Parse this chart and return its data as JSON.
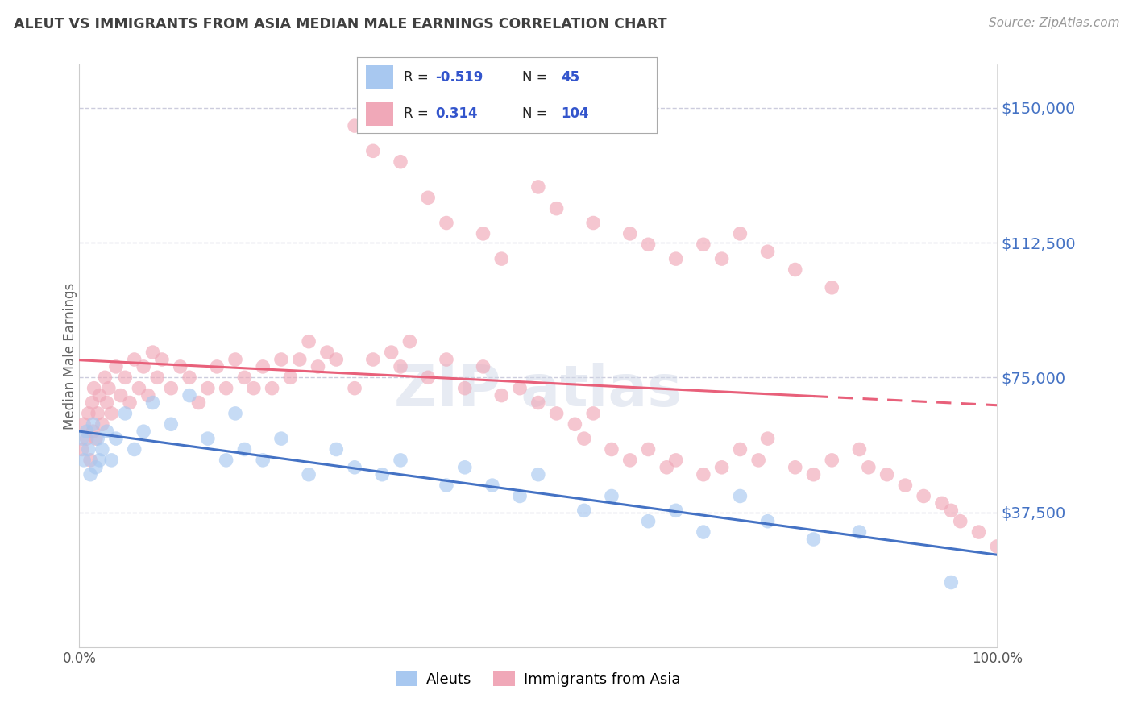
{
  "title": "ALEUT VS IMMIGRANTS FROM ASIA MEDIAN MALE EARNINGS CORRELATION CHART",
  "source": "Source: ZipAtlas.com",
  "ylabel": "Median Male Earnings",
  "ylim": [
    0,
    162000
  ],
  "ytick_vals": [
    37500,
    75000,
    112500,
    150000
  ],
  "ytick_labels": [
    "$37,500",
    "$75,000",
    "$112,500",
    "$150,000"
  ],
  "xtick_labels": [
    "0.0%",
    "100.0%"
  ],
  "color_aleut": "#a8c8f0",
  "color_asia": "#f0a8b8",
  "color_aleut_line": "#4472c4",
  "color_asia_line": "#e8607a",
  "color_ytick": "#4472c4",
  "color_title": "#404040",
  "color_source": "#999999",
  "color_grid": "#ccccdd",
  "aleut_x": [
    0.3,
    0.5,
    0.8,
    1.0,
    1.2,
    1.5,
    1.8,
    2.0,
    2.2,
    2.5,
    3.0,
    3.5,
    4.0,
    5.0,
    6.0,
    7.0,
    8.0,
    10.0,
    12.0,
    14.0,
    16.0,
    17.0,
    18.0,
    20.0,
    22.0,
    25.0,
    28.0,
    30.0,
    33.0,
    35.0,
    40.0,
    42.0,
    45.0,
    48.0,
    50.0,
    55.0,
    58.0,
    62.0,
    65.0,
    68.0,
    72.0,
    75.0,
    80.0,
    85.0,
    95.0
  ],
  "aleut_y": [
    58000,
    52000,
    60000,
    55000,
    48000,
    62000,
    50000,
    58000,
    52000,
    55000,
    60000,
    52000,
    58000,
    65000,
    55000,
    60000,
    68000,
    62000,
    70000,
    58000,
    52000,
    65000,
    55000,
    52000,
    58000,
    48000,
    55000,
    50000,
    48000,
    52000,
    45000,
    50000,
    45000,
    42000,
    48000,
    38000,
    42000,
    35000,
    38000,
    32000,
    42000,
    35000,
    30000,
    32000,
    18000
  ],
  "asia_x": [
    0.3,
    0.5,
    0.8,
    1.0,
    1.2,
    1.4,
    1.5,
    1.6,
    1.8,
    2.0,
    2.2,
    2.5,
    2.8,
    3.0,
    3.2,
    3.5,
    4.0,
    4.5,
    5.0,
    5.5,
    6.0,
    6.5,
    7.0,
    7.5,
    8.0,
    8.5,
    9.0,
    10.0,
    11.0,
    12.0,
    13.0,
    14.0,
    15.0,
    16.0,
    17.0,
    18.0,
    19.0,
    20.0,
    21.0,
    22.0,
    23.0,
    24.0,
    25.0,
    26.0,
    27.0,
    28.0,
    30.0,
    32.0,
    34.0,
    35.0,
    36.0,
    38.0,
    40.0,
    42.0,
    44.0,
    46.0,
    48.0,
    50.0,
    52.0,
    54.0,
    55.0,
    56.0,
    58.0,
    60.0,
    62.0,
    64.0,
    65.0,
    68.0,
    70.0,
    72.0,
    74.0,
    75.0,
    78.0,
    80.0,
    82.0,
    85.0,
    86.0,
    88.0,
    90.0,
    92.0,
    94.0,
    95.0,
    96.0,
    98.0,
    100.0,
    30.0,
    32.0,
    35.0,
    38.0,
    40.0,
    44.0,
    46.0,
    50.0,
    52.0,
    56.0,
    60.0,
    62.0,
    65.0,
    68.0,
    70.0,
    72.0,
    75.0,
    78.0,
    82.0
  ],
  "asia_y": [
    55000,
    62000,
    58000,
    65000,
    52000,
    68000,
    60000,
    72000,
    58000,
    65000,
    70000,
    62000,
    75000,
    68000,
    72000,
    65000,
    78000,
    70000,
    75000,
    68000,
    80000,
    72000,
    78000,
    70000,
    82000,
    75000,
    80000,
    72000,
    78000,
    75000,
    68000,
    72000,
    78000,
    72000,
    80000,
    75000,
    72000,
    78000,
    72000,
    80000,
    75000,
    80000,
    85000,
    78000,
    82000,
    80000,
    72000,
    80000,
    82000,
    78000,
    85000,
    75000,
    80000,
    72000,
    78000,
    70000,
    72000,
    68000,
    65000,
    62000,
    58000,
    65000,
    55000,
    52000,
    55000,
    50000,
    52000,
    48000,
    50000,
    55000,
    52000,
    58000,
    50000,
    48000,
    52000,
    55000,
    50000,
    48000,
    45000,
    42000,
    40000,
    38000,
    35000,
    32000,
    28000,
    145000,
    138000,
    135000,
    125000,
    118000,
    115000,
    108000,
    128000,
    122000,
    118000,
    115000,
    112000,
    108000,
    112000,
    108000,
    115000,
    110000,
    105000,
    100000
  ]
}
